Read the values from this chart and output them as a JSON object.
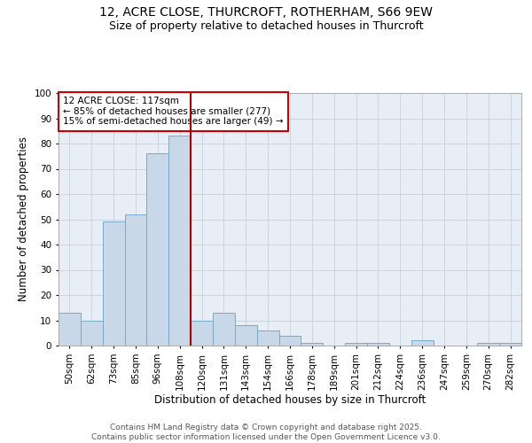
{
  "title_line1": "12, ACRE CLOSE, THURCROFT, ROTHERHAM, S66 9EW",
  "title_line2": "Size of property relative to detached houses in Thurcroft",
  "xlabel": "Distribution of detached houses by size in Thurcroft",
  "ylabel": "Number of detached properties",
  "categories": [
    "50sqm",
    "62sqm",
    "73sqm",
    "85sqm",
    "96sqm",
    "108sqm",
    "120sqm",
    "131sqm",
    "143sqm",
    "154sqm",
    "166sqm",
    "178sqm",
    "189sqm",
    "201sqm",
    "212sqm",
    "224sqm",
    "236sqm",
    "247sqm",
    "259sqm",
    "270sqm",
    "282sqm"
  ],
  "values": [
    13,
    10,
    49,
    52,
    76,
    83,
    10,
    13,
    8,
    6,
    4,
    1,
    0,
    1,
    1,
    0,
    2,
    0,
    0,
    1,
    1
  ],
  "bar_color": "#c8d8e8",
  "bar_edge_color": "#7aaac8",
  "vline_color": "#aa0000",
  "annotation_text": "12 ACRE CLOSE: 117sqm\n← 85% of detached houses are smaller (277)\n15% of semi-detached houses are larger (49) →",
  "ylim": [
    0,
    100
  ],
  "yticks": [
    0,
    10,
    20,
    30,
    40,
    50,
    60,
    70,
    80,
    90,
    100
  ],
  "grid_color": "#c8d0dc",
  "background_color": "#e8eef6",
  "footnote": "Contains HM Land Registry data © Crown copyright and database right 2025.\nContains public sector information licensed under the Open Government Licence v3.0.",
  "title_fontsize": 10,
  "subtitle_fontsize": 9,
  "axis_label_fontsize": 8.5,
  "tick_fontsize": 7.5,
  "annotation_fontsize": 7.5,
  "footnote_fontsize": 6.5
}
